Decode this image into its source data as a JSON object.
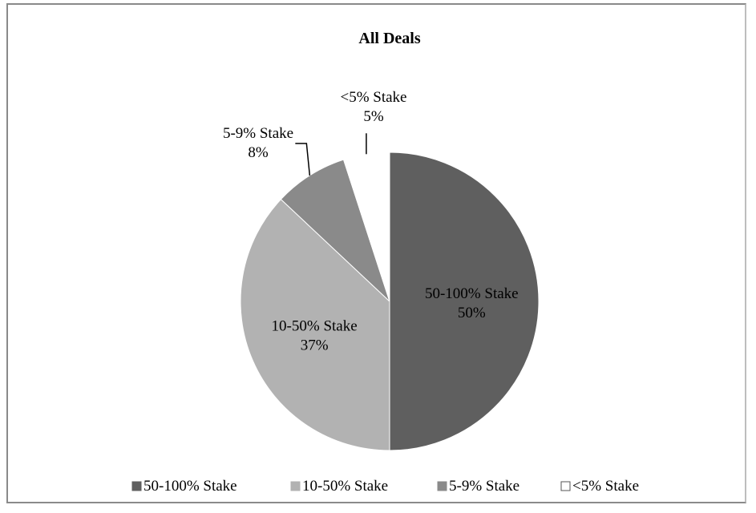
{
  "chart_data": {
    "type": "pie",
    "title": "All Deals",
    "slices": [
      {
        "name": "50-100% Stake",
        "value": 50,
        "label": "50%",
        "color": "#5f5f5f"
      },
      {
        "name": "10-50% Stake",
        "value": 37,
        "label": "37%",
        "color": "#b2b2b2"
      },
      {
        "name": "5-9% Stake",
        "value": 8,
        "label": "8%",
        "color": "#8a8a8a"
      },
      {
        "name": "<5% Stake",
        "value": 5,
        "label": "5%",
        "color": "#ffffff"
      }
    ],
    "legend": {
      "position": "bottom"
    }
  }
}
